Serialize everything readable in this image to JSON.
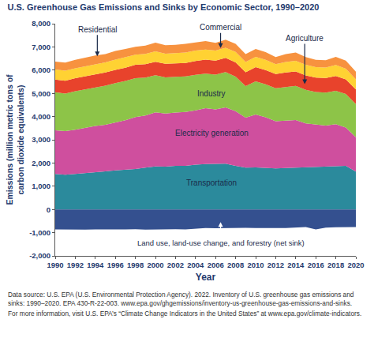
{
  "chart_data": {
    "type": "area",
    "title": "U.S. Greenhouse Gas Emissions and Sinks by Economic Sector, 1990–2020",
    "x_label": "Year",
    "y_label": "Emissions (million metric tons of\ncarbon dioxide equivalents)",
    "x": [
      1990,
      1991,
      1992,
      1993,
      1994,
      1995,
      1996,
      1997,
      1998,
      1999,
      2000,
      2001,
      2002,
      2003,
      2004,
      2005,
      2006,
      2007,
      2008,
      2009,
      2010,
      2011,
      2012,
      2013,
      2014,
      2015,
      2016,
      2017,
      2018,
      2019,
      2020
    ],
    "xlim": [
      1990,
      2020
    ],
    "xticks": [
      1990,
      1992,
      1994,
      1996,
      1998,
      2000,
      2002,
      2004,
      2006,
      2008,
      2010,
      2012,
      2014,
      2016,
      2018,
      2020
    ],
    "ylim": [
      -2000,
      8000
    ],
    "yticks": [
      {
        "value": -2000,
        "label": "-2,000"
      },
      {
        "value": -1000,
        "label": "-1,000"
      },
      0,
      {
        "value": 1000,
        "label": "1,000"
      },
      {
        "value": 2000,
        "label": "2,000"
      },
      {
        "value": 3000,
        "label": "3,000"
      },
      {
        "value": 4000,
        "label": "4,000"
      },
      {
        "value": 5000,
        "label": "5,000"
      },
      {
        "value": 6000,
        "label": "6,000"
      },
      {
        "value": 7000,
        "label": "7,000"
      },
      {
        "value": 8000,
        "label": "8,000"
      }
    ],
    "stacked": true,
    "grid": false,
    "series": [
      {
        "name": "Transportation",
        "color": "#2b8a9c",
        "values": [
          1526,
          1493,
          1530,
          1560,
          1605,
          1640,
          1680,
          1700,
          1745,
          1800,
          1850,
          1840,
          1880,
          1880,
          1930,
          1950,
          1960,
          1975,
          1880,
          1800,
          1810,
          1790,
          1770,
          1780,
          1800,
          1810,
          1840,
          1850,
          1870,
          1880,
          1630
        ]
      },
      {
        "name": "Electricity generation",
        "color": "#cf4f9e",
        "values": [
          1880,
          1880,
          1900,
          1960,
          1990,
          2010,
          2070,
          2140,
          2230,
          2250,
          2330,
          2290,
          2290,
          2320,
          2340,
          2410,
          2350,
          2420,
          2350,
          2150,
          2280,
          2180,
          2030,
          2050,
          2050,
          1900,
          1810,
          1760,
          1800,
          1650,
          1480
        ]
      },
      {
        "name": "Industry",
        "color": "#8dc448",
        "values": [
          1640,
          1620,
          1660,
          1650,
          1670,
          1680,
          1690,
          1690,
          1680,
          1630,
          1600,
          1560,
          1540,
          1530,
          1530,
          1490,
          1500,
          1520,
          1490,
          1360,
          1430,
          1420,
          1420,
          1450,
          1470,
          1440,
          1410,
          1420,
          1440,
          1440,
          1430
        ]
      },
      {
        "name": "Agriculture",
        "color": "#e8432c",
        "values": [
          550,
          550,
          560,
          560,
          570,
          570,
          570,
          575,
          580,
          580,
          580,
          580,
          580,
          580,
          590,
          600,
          600,
          610,
          610,
          600,
          610,
          610,
          610,
          620,
          620,
          620,
          620,
          630,
          640,
          630,
          630
        ]
      },
      {
        "name": "Commercial",
        "color": "#ffd233",
        "values": [
          430,
          430,
          430,
          430,
          430,
          430,
          440,
          440,
          430,
          440,
          450,
          440,
          440,
          450,
          450,
          440,
          430,
          440,
          450,
          440,
          440,
          440,
          430,
          450,
          460,
          460,
          450,
          450,
          470,
          460,
          430
        ]
      },
      {
        "name": "Residential",
        "color": "#f7923f",
        "values": [
          345,
          355,
          360,
          375,
          365,
          360,
          380,
          370,
          340,
          360,
          375,
          365,
          360,
          375,
          365,
          360,
          335,
          350,
          355,
          340,
          340,
          335,
          300,
          340,
          355,
          335,
          310,
          320,
          350,
          350,
          330
        ]
      },
      {
        "name": "Land use, land-use change, and forestry (net sink)",
        "color": "#34508f",
        "values": [
          -860,
          -870,
          -880,
          -870,
          -860,
          -870,
          -860,
          -860,
          -850,
          -870,
          -860,
          -850,
          -850,
          -860,
          -830,
          -800,
          -810,
          -800,
          -790,
          -790,
          -800,
          -810,
          -800,
          -800,
          -790,
          -760,
          -860,
          -780,
          -770,
          -760,
          -760
        ]
      }
    ],
    "notes": [
      "Data source: U.S. EPA (U.S. Environmental Protection Agency). 2022. Inventory of U.S. greenhouse gas emissions and sinks: 1990–2020. EPA 430-R-22-003. www.epa.gov/ghgemissions/inventory-us-greenhouse-gas-emissions-and-sinks.",
      "For more information, visit U.S. EPA’s “Climate Change Indicators in the United States” at www.epa.gov/climate-indicators."
    ]
  }
}
